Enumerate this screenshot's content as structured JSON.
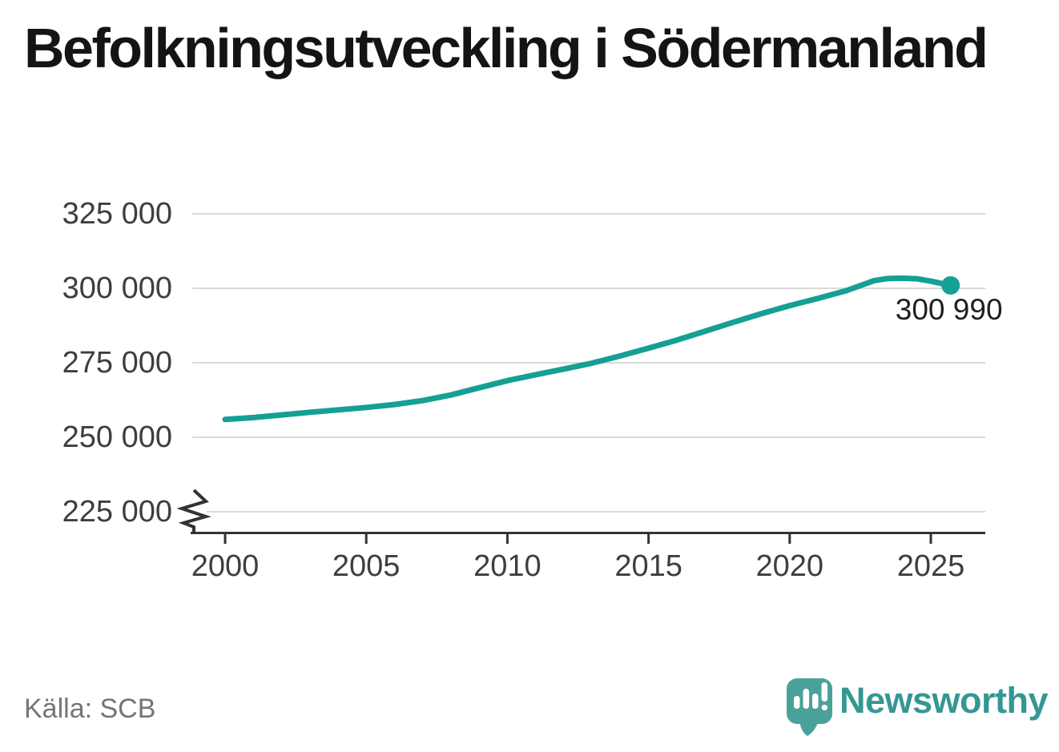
{
  "title": "Befolkningsutveckling i Södermanland",
  "source_note": "Källa: SCB",
  "branding": {
    "logo_text": "Newsworthy",
    "logo_icon": "newsworthy-speech-bubble-bar-chart-icon"
  },
  "colors": {
    "series_line": "#14A092",
    "end_marker": "#14A092",
    "gridline": "#DBDBDB",
    "axis": "#333333",
    "tick_label": "#3E3E3E",
    "title": "#141414",
    "end_label": "#1F1F1F",
    "source_text": "#757575",
    "logo_text_teal": "#359792",
    "logo_bubble_teal": "#4AA19A",
    "logo_bubble_shadow": "#3B8D87"
  },
  "chart_data": {
    "type": "line",
    "title": "Befolkningsutveckling i Södermanland",
    "x": [
      2000,
      2001,
      2002,
      2003,
      2004,
      2005,
      2006,
      2007,
      2008,
      2009,
      2010,
      2011,
      2012,
      2013,
      2014,
      2015,
      2016,
      2017,
      2018,
      2019,
      2020,
      2021,
      2022,
      2023,
      2023.5,
      2024,
      2024.5,
      2025,
      2025.7
    ],
    "values": [
      256000,
      256600,
      257500,
      258400,
      259200,
      260000,
      261000,
      262300,
      264200,
      266600,
      269000,
      271000,
      272900,
      274900,
      277300,
      279900,
      282600,
      285600,
      288600,
      291500,
      294200,
      296600,
      299200,
      302600,
      303300,
      303400,
      303200,
      302400,
      300990
    ],
    "end_point": {
      "x": 2025.7,
      "value": 300990,
      "label": "300 990"
    },
    "yticks": [
      {
        "label": "325 000",
        "value": 325000
      },
      {
        "label": "300 000",
        "value": 300000
      },
      {
        "label": "275 000",
        "value": 275000
      },
      {
        "label": "250 000",
        "value": 250000
      },
      {
        "label": "225 000",
        "value": 225000
      }
    ],
    "xticks": [
      {
        "label": "2000",
        "value": 2000
      },
      {
        "label": "2005",
        "value": 2005
      },
      {
        "label": "2010",
        "value": 2010
      },
      {
        "label": "2015",
        "value": 2015
      },
      {
        "label": "2020",
        "value": 2020
      },
      {
        "label": "2025",
        "value": 2025
      }
    ],
    "ylim": [
      225000,
      325000
    ],
    "xlim": [
      1998.8,
      2026.9
    ],
    "axis_break_at_bottom": true,
    "grid": "horizontal",
    "legend": "none"
  }
}
